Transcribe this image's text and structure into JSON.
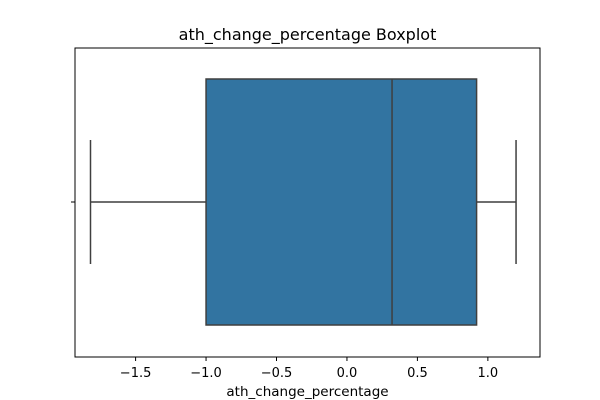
{
  "chart_data": {
    "type": "boxplot",
    "title": "ath_change_percentage Boxplot",
    "xlabel": "ath_change_percentage",
    "ylabel": "",
    "orientation": "horizontal",
    "xlim": [
      -1.93,
      1.37
    ],
    "xticks": [
      -1.5,
      -1.0,
      -0.5,
      0.0,
      0.5,
      1.0
    ],
    "xtick_labels": [
      "−1.5",
      "−1.0",
      "−0.5",
      "0.0",
      "0.5",
      "1.0"
    ],
    "box": {
      "whisker_low": -1.82,
      "q1": -1.0,
      "median": 0.32,
      "q3": 0.92,
      "whisker_high": 1.2
    },
    "colors": {
      "box_fill": "#3274a1",
      "line": "#3f3f3f",
      "axis": "#000000"
    },
    "grid": false
  }
}
